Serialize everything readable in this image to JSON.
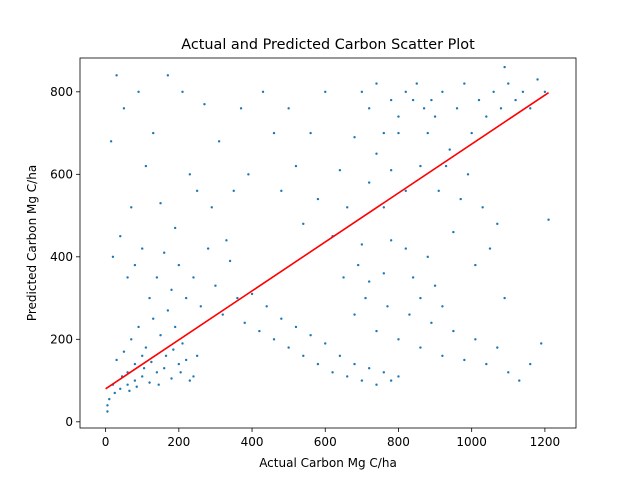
{
  "chart_data": {
    "type": "scatter",
    "title": "Actual and Predicted Carbon Scatter Plot",
    "xlabel": "Actual Carbon Mg C/ha",
    "ylabel": "Predicted Carbon Mg C/ha",
    "xlim": [
      -70,
      1285
    ],
    "ylim": [
      -15,
      882
    ],
    "xticks": [
      0,
      200,
      400,
      600,
      800,
      1000,
      1200
    ],
    "yticks": [
      0,
      200,
      400,
      600,
      800
    ],
    "xtick_labels": [
      "0",
      "200",
      "400",
      "600",
      "800",
      "1000",
      "1200"
    ],
    "ytick_labels": [
      "0",
      "200",
      "400",
      "600",
      "800"
    ],
    "grid": false,
    "legend": "none",
    "series": [
      {
        "kind": "points",
        "color": "#1f77b4",
        "points": [
          [
            5,
            25
          ],
          [
            5,
            40
          ],
          [
            10,
            55
          ],
          [
            25,
            70
          ],
          [
            40,
            80
          ],
          [
            60,
            90
          ],
          [
            80,
            100
          ],
          [
            100,
            110
          ],
          [
            120,
            95
          ],
          [
            140,
            120
          ],
          [
            160,
            130
          ],
          [
            180,
            105
          ],
          [
            200,
            140
          ],
          [
            220,
            150
          ],
          [
            240,
            110
          ],
          [
            30,
            150
          ],
          [
            50,
            170
          ],
          [
            70,
            200
          ],
          [
            90,
            230
          ],
          [
            110,
            180
          ],
          [
            130,
            250
          ],
          [
            150,
            210
          ],
          [
            170,
            270
          ],
          [
            190,
            230
          ],
          [
            210,
            190
          ],
          [
            60,
            120
          ],
          [
            80,
            140
          ],
          [
            100,
            160
          ],
          [
            20,
            90
          ],
          [
            45,
            110
          ],
          [
            65,
            75
          ],
          [
            85,
            85
          ],
          [
            105,
            130
          ],
          [
            125,
            145
          ],
          [
            145,
            90
          ],
          [
            165,
            160
          ],
          [
            185,
            175
          ],
          [
            205,
            120
          ],
          [
            230,
            100
          ],
          [
            250,
            160
          ],
          [
            15,
            680
          ],
          [
            30,
            840
          ],
          [
            50,
            760
          ],
          [
            70,
            520
          ],
          [
            90,
            800
          ],
          [
            110,
            620
          ],
          [
            130,
            700
          ],
          [
            150,
            530
          ],
          [
            170,
            840
          ],
          [
            190,
            470
          ],
          [
            210,
            800
          ],
          [
            230,
            600
          ],
          [
            250,
            560
          ],
          [
            270,
            770
          ],
          [
            290,
            520
          ],
          [
            310,
            680
          ],
          [
            330,
            440
          ],
          [
            350,
            560
          ],
          [
            370,
            760
          ],
          [
            390,
            600
          ],
          [
            20,
            400
          ],
          [
            40,
            450
          ],
          [
            60,
            350
          ],
          [
            80,
            380
          ],
          [
            100,
            420
          ],
          [
            120,
            300
          ],
          [
            140,
            350
          ],
          [
            160,
            410
          ],
          [
            180,
            320
          ],
          [
            200,
            380
          ],
          [
            220,
            300
          ],
          [
            240,
            350
          ],
          [
            260,
            280
          ],
          [
            280,
            420
          ],
          [
            300,
            330
          ],
          [
            320,
            260
          ],
          [
            340,
            390
          ],
          [
            360,
            300
          ],
          [
            380,
            240
          ],
          [
            400,
            310
          ],
          [
            420,
            220
          ],
          [
            440,
            280
          ],
          [
            460,
            200
          ],
          [
            480,
            250
          ],
          [
            500,
            180
          ],
          [
            520,
            230
          ],
          [
            540,
            160
          ],
          [
            560,
            210
          ],
          [
            580,
            140
          ],
          [
            600,
            190
          ],
          [
            620,
            120
          ],
          [
            640,
            160
          ],
          [
            660,
            110
          ],
          [
            680,
            140
          ],
          [
            700,
            100
          ],
          [
            720,
            130
          ],
          [
            740,
            90
          ],
          [
            760,
            120
          ],
          [
            780,
            100
          ],
          [
            800,
            110
          ],
          [
            430,
            800
          ],
          [
            460,
            700
          ],
          [
            480,
            560
          ],
          [
            500,
            760
          ],
          [
            520,
            620
          ],
          [
            540,
            480
          ],
          [
            560,
            700
          ],
          [
            580,
            540
          ],
          [
            600,
            800
          ],
          [
            620,
            450
          ],
          [
            640,
            610
          ],
          [
            660,
            520
          ],
          [
            680,
            690
          ],
          [
            700,
            430
          ],
          [
            720,
            580
          ],
          [
            740,
            650
          ],
          [
            760,
            520
          ],
          [
            780,
            610
          ],
          [
            800,
            700
          ],
          [
            820,
            560
          ],
          [
            840,
            780
          ],
          [
            860,
            620
          ],
          [
            880,
            700
          ],
          [
            900,
            740
          ],
          [
            920,
            800
          ],
          [
            940,
            660
          ],
          [
            960,
            760
          ],
          [
            980,
            820
          ],
          [
            1000,
            700
          ],
          [
            1020,
            780
          ],
          [
            1040,
            740
          ],
          [
            1060,
            800
          ],
          [
            1080,
            760
          ],
          [
            1100,
            820
          ],
          [
            1120,
            780
          ],
          [
            1140,
            800
          ],
          [
            1160,
            760
          ],
          [
            1180,
            830
          ],
          [
            1200,
            800
          ],
          [
            1090,
            860
          ],
          [
            700,
            800
          ],
          [
            720,
            760
          ],
          [
            740,
            820
          ],
          [
            760,
            700
          ],
          [
            780,
            780
          ],
          [
            800,
            740
          ],
          [
            820,
            800
          ],
          [
            850,
            820
          ],
          [
            870,
            760
          ],
          [
            890,
            780
          ],
          [
            910,
            560
          ],
          [
            930,
            620
          ],
          [
            950,
            460
          ],
          [
            970,
            540
          ],
          [
            990,
            600
          ],
          [
            1010,
            380
          ],
          [
            1030,
            520
          ],
          [
            1050,
            420
          ],
          [
            1070,
            480
          ],
          [
            1090,
            300
          ],
          [
            650,
            350
          ],
          [
            680,
            260
          ],
          [
            710,
            300
          ],
          [
            740,
            220
          ],
          [
            770,
            280
          ],
          [
            800,
            200
          ],
          [
            830,
            260
          ],
          [
            860,
            180
          ],
          [
            890,
            240
          ],
          [
            920,
            160
          ],
          [
            950,
            220
          ],
          [
            980,
            150
          ],
          [
            1010,
            200
          ],
          [
            1040,
            140
          ],
          [
            1070,
            180
          ],
          [
            1100,
            120
          ],
          [
            1130,
            100
          ],
          [
            1160,
            140
          ],
          [
            1190,
            190
          ],
          [
            1210,
            490
          ],
          [
            880,
            400
          ],
          [
            900,
            330
          ],
          [
            920,
            280
          ],
          [
            840,
            350
          ],
          [
            860,
            300
          ],
          [
            760,
            360
          ],
          [
            780,
            440
          ],
          [
            820,
            420
          ],
          [
            690,
            380
          ],
          [
            720,
            340
          ]
        ]
      },
      {
        "kind": "line",
        "color": "#ff0000",
        "points": [
          [
            0,
            80
          ],
          [
            1210,
            798
          ]
        ]
      }
    ]
  }
}
